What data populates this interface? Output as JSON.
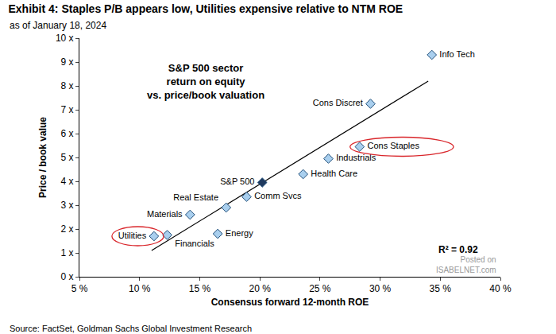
{
  "chart_data": {
    "type": "scatter",
    "title": "Exhibit 4: Staples P/B appears low, Utilities expensive relative to NTM ROE",
    "subtitle": "as of January 18, 2024",
    "annotation": [
      "S&P 500 sector",
      "return on equity",
      "vs. price/book valuation"
    ],
    "r_squared_label": "R² = 0.92",
    "source": "Source: FactSet, Goldman Sachs Global Investment Research",
    "watermark": [
      "Posted on",
      "ISABELNET.com"
    ],
    "x_label": "Consensus forward 12-month ROE",
    "y_label": "Price / book value",
    "labels": [
      "Info Tech",
      "Cons Discret",
      "Cons Staples",
      "Industrials",
      "Health Care",
      "S&P 500",
      "Comm Svcs",
      "Real Estate",
      "Materials",
      "Utilities",
      "Financials",
      "Energy"
    ],
    "x": [
      34.3,
      29.2,
      28.3,
      25.7,
      23.6,
      20.2,
      18.9,
      17.2,
      14.2,
      11.2,
      12.3,
      16.5
    ],
    "values": [
      9.3,
      7.25,
      5.45,
      4.95,
      4.3,
      3.95,
      3.35,
      2.9,
      2.6,
      1.7,
      1.75,
      1.8
    ],
    "colors": [
      "#a9cfee",
      "#a9cfee",
      "#a9cfee",
      "#a9cfee",
      "#a9cfee",
      "#1f3a5f",
      "#a9cfee",
      "#a9cfee",
      "#a9cfee",
      "#a9cfee",
      "#a9cfee",
      "#a9cfee"
    ],
    "marker": "diamond",
    "circled": [
      "Cons Staples",
      "Utilities"
    ],
    "trendline": {
      "x": [
        11,
        34
      ],
      "values": [
        1.1,
        8.2
      ],
      "color": "#000000"
    },
    "xlim": [
      5,
      40
    ],
    "xticks": [
      {
        "value": 5,
        "label": "5 %"
      },
      {
        "value": 10,
        "label": "10 %"
      },
      {
        "value": 15,
        "label": "15 %"
      },
      {
        "value": 20,
        "label": "20 %"
      },
      {
        "value": 25,
        "label": "25 %"
      },
      {
        "value": 30,
        "label": "30 %"
      },
      {
        "value": 35,
        "label": "35 %"
      },
      {
        "value": 40,
        "label": "40 %"
      }
    ],
    "ylim": [
      0,
      10
    ],
    "yticks": [
      {
        "value": 0,
        "label": "0 x"
      },
      {
        "value": 1,
        "label": "1 x"
      },
      {
        "value": 2,
        "label": "2 x"
      },
      {
        "value": 3,
        "label": "3 x"
      },
      {
        "value": 4,
        "label": "4 x"
      },
      {
        "value": 5,
        "label": "5 x"
      },
      {
        "value": 6,
        "label": "6 x"
      },
      {
        "value": 7,
        "label": "7 x"
      },
      {
        "value": 8,
        "label": "8 x"
      },
      {
        "value": 9,
        "label": "9 x"
      },
      {
        "value": 10,
        "label": "10 x"
      }
    ],
    "grid": false
  }
}
